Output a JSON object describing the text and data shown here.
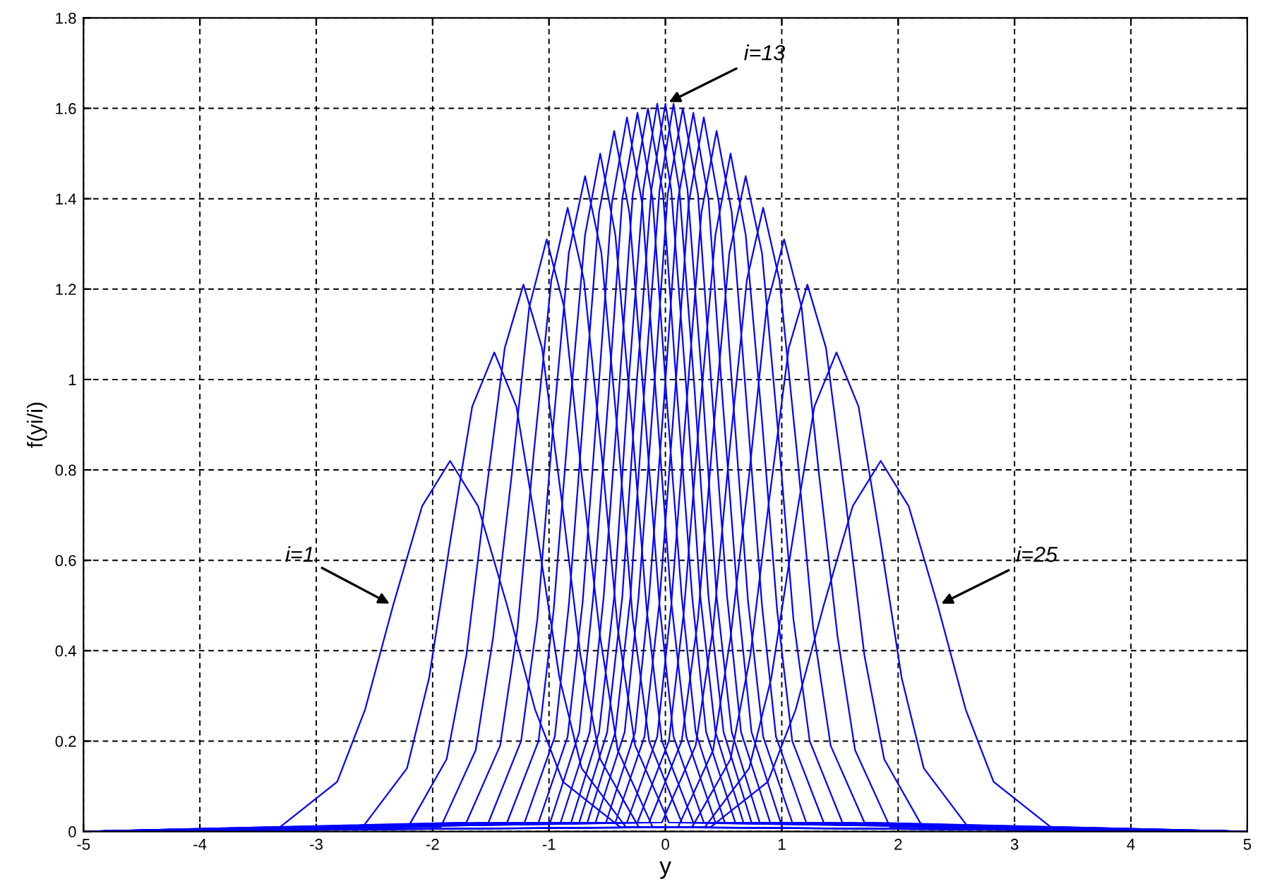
{
  "chart_data": {
    "type": "line",
    "xlabel": "y",
    "ylabel": "f(yi/i)",
    "xlim": [
      -5,
      5
    ],
    "xticks": [
      -5,
      -4,
      -3,
      -2,
      -1,
      0,
      1,
      2,
      3,
      4,
      5
    ],
    "ylim": [
      0,
      1.8
    ],
    "yticks": [
      0,
      0.2,
      0.4,
      0.6,
      0.8,
      1,
      1.2,
      1.4,
      1.6,
      1.8
    ],
    "grid": true,
    "line_style": "solid",
    "marker": "none",
    "annotations": [
      {
        "text": "i=1",
        "x": -2.34,
        "y": 0.5
      },
      {
        "text": "i=13",
        "x": 0,
        "y": 1.61
      },
      {
        "text": "i=25",
        "x": 2.34,
        "y": 0.5
      }
    ],
    "series": [
      {
        "color": "#0000ff",
        "x": [
          -5,
          -3.31,
          -2.82,
          -2.58,
          -2.34,
          -2.09,
          -1.85,
          -1.61,
          -1.36,
          -1.12,
          -0.88,
          -0.39,
          5
        ],
        "values": [
          0,
          0.01,
          0.11,
          0.27,
          0.5,
          0.72,
          0.82,
          0.72,
          0.5,
          0.27,
          0.11,
          0.01,
          0
        ]
      },
      {
        "color": "#0000ff",
        "x": [
          -5,
          -2.6,
          -2.22,
          -2.03,
          -1.85,
          -1.66,
          -1.47,
          -1.28,
          -1.09,
          -0.91,
          -0.72,
          -0.34,
          5
        ],
        "values": [
          0,
          0.01,
          0.14,
          0.34,
          0.64,
          0.94,
          1.06,
          0.94,
          0.64,
          0.34,
          0.14,
          0.01,
          0
        ]
      },
      {
        "color": "#0000ff",
        "x": [
          -5,
          -2.21,
          -1.88,
          -1.71,
          -1.55,
          -1.38,
          -1.22,
          -1.06,
          -0.89,
          -0.73,
          -0.56,
          -0.23,
          5
        ],
        "values": [
          0,
          0.01,
          0.16,
          0.39,
          0.73,
          1.07,
          1.21,
          1.07,
          0.73,
          0.39,
          0.16,
          0.01,
          0
        ]
      },
      {
        "color": "#0000ff",
        "x": [
          -5,
          -1.93,
          -1.63,
          -1.48,
          -1.32,
          -1.17,
          -1.02,
          -0.87,
          -0.72,
          -0.56,
          -0.41,
          -0.11,
          5
        ],
        "values": [
          0,
          0.01,
          0.18,
          0.43,
          0.79,
          1.16,
          1.31,
          1.16,
          0.79,
          0.43,
          0.18,
          0.01,
          0
        ]
      },
      {
        "color": "#0000ff",
        "x": [
          -5,
          -1.71,
          -1.42,
          -1.27,
          -1.13,
          -0.98,
          -0.84,
          -0.7,
          -0.55,
          -0.41,
          -0.26,
          0.03,
          5
        ],
        "values": [
          0,
          0.02,
          0.19,
          0.45,
          0.84,
          1.22,
          1.38,
          1.22,
          0.84,
          0.45,
          0.19,
          0.02,
          0
        ]
      },
      {
        "color": "#0000ff",
        "x": [
          -5,
          -1.52,
          -1.24,
          -1.1,
          -0.97,
          -0.83,
          -0.69,
          -0.55,
          -0.41,
          -0.28,
          -0.14,
          0.14,
          5
        ],
        "values": [
          0,
          0.02,
          0.2,
          0.47,
          0.88,
          1.28,
          1.45,
          1.28,
          0.88,
          0.47,
          0.2,
          0.02,
          0
        ]
      },
      {
        "color": "#0000ff",
        "x": [
          -5,
          -1.36,
          -1.09,
          -0.96,
          -0.83,
          -0.69,
          -0.56,
          -0.43,
          -0.29,
          -0.16,
          -0.03,
          0.24,
          5
        ],
        "values": [
          0,
          0.02,
          0.2,
          0.49,
          0.91,
          1.32,
          1.5,
          1.32,
          0.91,
          0.49,
          0.2,
          0.02,
          0
        ]
      },
      {
        "color": "#0000ff",
        "x": [
          -5,
          -1.21,
          -0.95,
          -0.83,
          -0.7,
          -0.57,
          -0.44,
          -0.31,
          -0.18,
          -0.05,
          0.07,
          0.33,
          5
        ],
        "values": [
          0,
          0.02,
          0.21,
          0.5,
          0.94,
          1.37,
          1.55,
          1.37,
          0.94,
          0.5,
          0.21,
          0.02,
          0
        ]
      },
      {
        "color": "#0000ff",
        "x": [
          -5,
          -1.09,
          -0.84,
          -0.71,
          -0.58,
          -0.46,
          -0.33,
          -0.2,
          -0.08,
          0.05,
          0.18,
          0.43,
          5
        ],
        "values": [
          0,
          0.02,
          0.21,
          0.51,
          0.96,
          1.39,
          1.58,
          1.39,
          0.96,
          0.51,
          0.21,
          0.02,
          0
        ]
      },
      {
        "color": "#0000ff",
        "x": [
          -5,
          -0.99,
          -0.74,
          -0.62,
          -0.49,
          -0.37,
          -0.24,
          -0.11,
          0.01,
          0.14,
          0.26,
          0.51,
          5
        ],
        "values": [
          0,
          0.02,
          0.22,
          0.52,
          0.96,
          1.4,
          1.59,
          1.4,
          0.96,
          0.52,
          0.22,
          0.02,
          0
        ]
      },
      {
        "color": "#0000ff",
        "x": [
          -5,
          -0.9,
          -0.65,
          -0.53,
          -0.4,
          -0.28,
          -0.15,
          -0.02,
          0.1,
          0.23,
          0.35,
          0.6,
          5
        ],
        "values": [
          0,
          0.02,
          0.22,
          0.52,
          0.97,
          1.41,
          1.6,
          1.41,
          0.97,
          0.52,
          0.22,
          0.02,
          0
        ]
      },
      {
        "color": "#0000ff",
        "x": [
          -5,
          -0.81,
          -0.57,
          -0.44,
          -0.32,
          -0.19,
          -0.07,
          0.05,
          0.18,
          0.3,
          0.43,
          0.67,
          5
        ],
        "values": [
          0,
          0.02,
          0.22,
          0.52,
          0.98,
          1.42,
          1.61,
          1.42,
          0.98,
          0.52,
          0.22,
          0.02,
          0
        ]
      },
      {
        "color": "#0000ff",
        "x": [
          -5,
          -0.74,
          -0.5,
          -0.37,
          -0.25,
          -0.12,
          0,
          0.12,
          0.25,
          0.37,
          0.5,
          0.74,
          5
        ],
        "values": [
          0,
          0.02,
          0.22,
          0.52,
          0.98,
          1.42,
          1.61,
          1.42,
          0.98,
          0.52,
          0.22,
          0.02,
          0
        ]
      },
      {
        "color": "#0000ff",
        "x": [
          -5,
          -0.67,
          -0.43,
          -0.3,
          -0.18,
          -0.05,
          0.07,
          0.19,
          0.32,
          0.44,
          0.57,
          0.81,
          5
        ],
        "values": [
          0,
          0.02,
          0.22,
          0.52,
          0.98,
          1.42,
          1.61,
          1.42,
          0.98,
          0.52,
          0.22,
          0.02,
          0
        ]
      },
      {
        "color": "#0000ff",
        "x": [
          -5,
          -0.6,
          -0.35,
          -0.23,
          -0.1,
          0.02,
          0.15,
          0.28,
          0.4,
          0.53,
          0.65,
          0.9,
          5
        ],
        "values": [
          0,
          0.02,
          0.22,
          0.52,
          0.97,
          1.41,
          1.6,
          1.41,
          0.97,
          0.52,
          0.22,
          0.02,
          0
        ]
      },
      {
        "color": "#0000ff",
        "x": [
          -5,
          -0.51,
          -0.26,
          -0.14,
          -0.01,
          0.11,
          0.24,
          0.37,
          0.49,
          0.62,
          0.74,
          0.99,
          5
        ],
        "values": [
          0,
          0.02,
          0.22,
          0.52,
          0.96,
          1.4,
          1.59,
          1.4,
          0.96,
          0.52,
          0.22,
          0.02,
          0
        ]
      },
      {
        "color": "#0000ff",
        "x": [
          -5,
          -0.43,
          -0.18,
          -0.05,
          0.08,
          0.2,
          0.33,
          0.46,
          0.58,
          0.71,
          0.84,
          1.09,
          5
        ],
        "values": [
          0,
          0.02,
          0.21,
          0.51,
          0.96,
          1.39,
          1.58,
          1.39,
          0.96,
          0.51,
          0.21,
          0.02,
          0
        ]
      },
      {
        "color": "#0000ff",
        "x": [
          -5,
          -0.33,
          -0.07,
          0.05,
          0.18,
          0.31,
          0.44,
          0.57,
          0.7,
          0.83,
          0.95,
          1.21,
          5
        ],
        "values": [
          0,
          0.02,
          0.21,
          0.5,
          0.94,
          1.37,
          1.55,
          1.37,
          0.94,
          0.5,
          0.21,
          0.02,
          0
        ]
      },
      {
        "color": "#0000ff",
        "x": [
          -5,
          -0.24,
          0.03,
          0.16,
          0.29,
          0.43,
          0.56,
          0.69,
          0.83,
          0.96,
          1.09,
          1.36,
          5
        ],
        "values": [
          0,
          0.02,
          0.2,
          0.49,
          0.91,
          1.32,
          1.5,
          1.32,
          0.91,
          0.49,
          0.2,
          0.02,
          0
        ]
      },
      {
        "color": "#0000ff",
        "x": [
          -5,
          -0.14,
          0.14,
          0.28,
          0.41,
          0.55,
          0.69,
          0.83,
          0.97,
          1.1,
          1.24,
          1.52,
          5
        ],
        "values": [
          0,
          0.02,
          0.2,
          0.47,
          0.88,
          1.28,
          1.45,
          1.28,
          0.88,
          0.47,
          0.2,
          0.02,
          0
        ]
      },
      {
        "color": "#0000ff",
        "x": [
          -5,
          -0.03,
          0.26,
          0.41,
          0.55,
          0.7,
          0.84,
          0.98,
          1.13,
          1.27,
          1.42,
          1.71,
          5
        ],
        "values": [
          0,
          0.02,
          0.19,
          0.45,
          0.84,
          1.22,
          1.38,
          1.22,
          0.84,
          0.45,
          0.19,
          0.02,
          0
        ]
      },
      {
        "color": "#0000ff",
        "x": [
          -5,
          0.11,
          0.41,
          0.56,
          0.72,
          0.87,
          1.02,
          1.17,
          1.32,
          1.48,
          1.63,
          1.93,
          5
        ],
        "values": [
          0,
          0.01,
          0.18,
          0.43,
          0.79,
          1.16,
          1.31,
          1.16,
          0.79,
          0.43,
          0.18,
          0.01,
          0
        ]
      },
      {
        "color": "#0000ff",
        "x": [
          -5,
          0.23,
          0.56,
          0.73,
          0.89,
          1.06,
          1.22,
          1.38,
          1.55,
          1.71,
          1.88,
          2.21,
          5
        ],
        "values": [
          0,
          0.01,
          0.16,
          0.39,
          0.73,
          1.07,
          1.21,
          1.07,
          0.73,
          0.39,
          0.16,
          0.01,
          0
        ]
      },
      {
        "color": "#0000ff",
        "x": [
          -5,
          0.34,
          0.72,
          0.91,
          1.09,
          1.28,
          1.47,
          1.66,
          1.85,
          2.03,
          2.22,
          2.6,
          5
        ],
        "values": [
          0,
          0.01,
          0.14,
          0.34,
          0.64,
          0.94,
          1.06,
          0.94,
          0.64,
          0.34,
          0.14,
          0.01,
          0
        ]
      },
      {
        "color": "#0000ff",
        "x": [
          -5,
          0.39,
          0.88,
          1.12,
          1.36,
          1.61,
          1.85,
          2.09,
          2.34,
          2.58,
          2.82,
          3.31,
          5
        ],
        "values": [
          0,
          0.01,
          0.11,
          0.27,
          0.5,
          0.72,
          0.82,
          0.72,
          0.5,
          0.27,
          0.11,
          0.01,
          0
        ]
      }
    ]
  }
}
